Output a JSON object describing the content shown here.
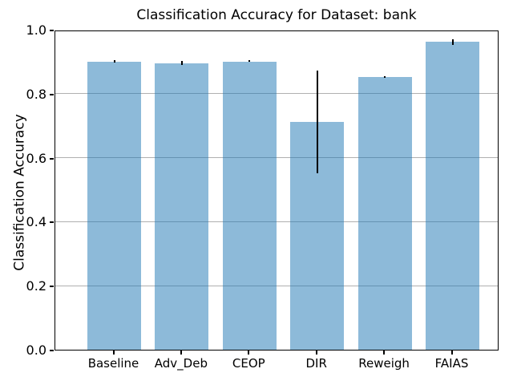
{
  "chart_data": {
    "type": "bar",
    "title": "Classification Accuracy for Dataset: bank",
    "xlabel": "",
    "ylabel": "Classification Accuracy",
    "categories": [
      "Baseline",
      "Adv_Deb",
      "CEOP",
      "DIR",
      "Reweigh",
      "FAIAS"
    ],
    "values": [
      0.901,
      0.896,
      0.901,
      0.712,
      0.852,
      0.962
    ],
    "errors": [
      0.003,
      0.006,
      0.002,
      0.16,
      0.003,
      0.009
    ],
    "ylim": [
      0.0,
      1.0
    ],
    "yticks": [
      0.0,
      0.2,
      0.4,
      0.6,
      0.8,
      1.0
    ],
    "ytick_labels": [
      "0.0",
      "0.2",
      "0.4",
      "0.6",
      "0.8",
      "1.0"
    ],
    "grid": "horizontal",
    "legend": "none",
    "colors": {
      "bar_fill": "#1f77b4",
      "bar_alpha": 0.51,
      "error": "#000000",
      "grid": "#b0b0b0",
      "spine": "#000000",
      "background": "#ffffff"
    }
  }
}
